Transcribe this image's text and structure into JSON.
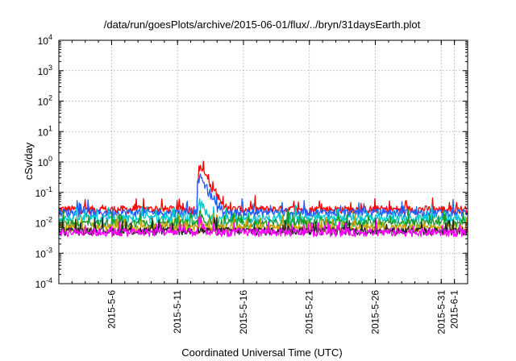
{
  "chart_data": {
    "type": "line",
    "title": "/data/run/goesPlots/archive/2015-06-01/flux/../bryn/31daysEarth.plot",
    "xlabel": "Coordinated Universal Time (UTC)",
    "ylabel": "cSv/day",
    "y_scale": "log",
    "ylim": [
      0.0001,
      10000
    ],
    "y_ticks": [
      {
        "base": "10",
        "exp": "-4",
        "value": 0.0001
      },
      {
        "base": "10",
        "exp": "-3",
        "value": 0.001
      },
      {
        "base": "10",
        "exp": "-2",
        "value": 0.01
      },
      {
        "base": "10",
        "exp": "-1",
        "value": 0.1
      },
      {
        "base": "10",
        "exp": "0",
        "value": 1
      },
      {
        "base": "10",
        "exp": "1",
        "value": 10
      },
      {
        "base": "10",
        "exp": "2",
        "value": 100
      },
      {
        "base": "10",
        "exp": "3",
        "value": 1000
      },
      {
        "base": "10",
        "exp": "4",
        "value": 10000
      }
    ],
    "xlim": [
      "2015-05-02",
      "2015-06-02"
    ],
    "x_ticks": [
      "2015-5-6",
      "2015-5-11",
      "2015-5-16",
      "2015-5-21",
      "2015-5-26",
      "2015-5-31",
      "2015-6-1"
    ],
    "grid": true,
    "legend": "none",
    "series": [
      {
        "color": "#ff0000",
        "baseline": 0.028,
        "peak": 0.75,
        "x": [
          "2015-05-02",
          "2015-05-07",
          "2015-05-12",
          "2015-05-13",
          "2015-05-16",
          "2015-05-21",
          "2015-05-26",
          "2015-05-31",
          "2015-06-02"
        ],
        "values": [
          0.03,
          0.028,
          0.03,
          0.4,
          0.05,
          0.03,
          0.035,
          0.03,
          0.03
        ]
      },
      {
        "color": "#1f5fff",
        "baseline": 0.022,
        "peak": 0.35,
        "x": [
          "2015-05-02",
          "2015-05-07",
          "2015-05-12",
          "2015-05-13",
          "2015-05-16",
          "2015-05-21",
          "2015-05-26",
          "2015-05-31",
          "2015-06-02"
        ],
        "values": [
          0.022,
          0.02,
          0.022,
          0.2,
          0.03,
          0.022,
          0.025,
          0.022,
          0.022
        ]
      },
      {
        "color": "#00c8c8",
        "baseline": 0.014,
        "peak": 0.05,
        "x": [
          "2015-05-02",
          "2015-05-07",
          "2015-05-12",
          "2015-05-13",
          "2015-05-16",
          "2015-05-21",
          "2015-05-26",
          "2015-05-31",
          "2015-06-02"
        ],
        "values": [
          0.014,
          0.013,
          0.014,
          0.04,
          0.015,
          0.014,
          0.014,
          0.014,
          0.014
        ]
      },
      {
        "color": "#1a9a2a",
        "baseline": 0.01,
        "peak": 0.02,
        "x": [
          "2015-05-02",
          "2015-05-07",
          "2015-05-12",
          "2015-05-13",
          "2015-05-16",
          "2015-05-21",
          "2015-05-26",
          "2015-05-31",
          "2015-06-02"
        ],
        "values": [
          0.01,
          0.009,
          0.01,
          0.018,
          0.01,
          0.01,
          0.01,
          0.01,
          0.01
        ]
      },
      {
        "color": "#c8a000",
        "baseline": 0.007,
        "peak": 0.012,
        "x": [
          "2015-05-02",
          "2015-05-07",
          "2015-05-12",
          "2015-05-13",
          "2015-05-16",
          "2015-05-21",
          "2015-05-26",
          "2015-05-31",
          "2015-06-02"
        ],
        "values": [
          0.007,
          0.007,
          0.007,
          0.01,
          0.007,
          0.007,
          0.007,
          0.007,
          0.007
        ]
      },
      {
        "color": "#222222",
        "baseline": 0.0055,
        "peak": 0.007,
        "x": [
          "2015-05-02",
          "2015-05-07",
          "2015-05-12",
          "2015-05-13",
          "2015-05-16",
          "2015-05-21",
          "2015-05-26",
          "2015-05-31",
          "2015-06-02"
        ],
        "values": [
          0.0055,
          0.005,
          0.0055,
          0.006,
          0.0055,
          0.0055,
          0.0055,
          0.0055,
          0.0055
        ]
      },
      {
        "color": "#ff00ff",
        "baseline": 0.005,
        "peak": 0.012,
        "x": [
          "2015-05-02",
          "2015-05-07",
          "2015-05-12",
          "2015-05-13",
          "2015-05-16",
          "2015-05-21",
          "2015-05-26",
          "2015-05-31",
          "2015-06-02"
        ],
        "values": [
          0.005,
          0.0045,
          0.005,
          0.008,
          0.005,
          0.005,
          0.005,
          0.005,
          0.005
        ]
      }
    ]
  }
}
